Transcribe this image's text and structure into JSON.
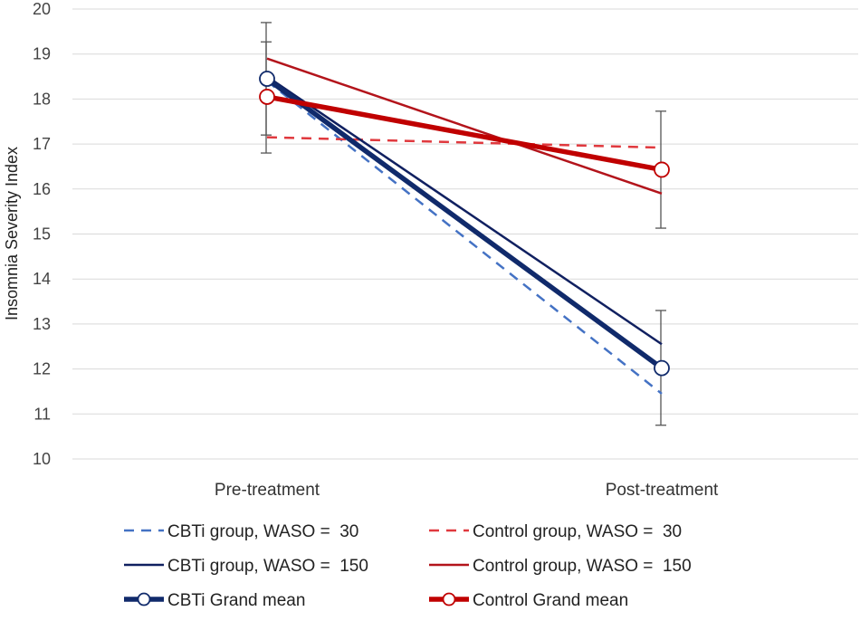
{
  "chart_data": {
    "type": "line",
    "title": "",
    "ylabel": "Insomnia Severity Index",
    "xlabel": "",
    "categories": [
      "Pre-treatment",
      "Post-treatment"
    ],
    "ylim": [
      10,
      20
    ],
    "yticks": [
      "10",
      "11",
      "12",
      "13",
      "14",
      "15",
      "16",
      "17",
      "18",
      "19",
      "20"
    ],
    "grid": true,
    "series": [
      {
        "key": "cbti_w30",
        "name": "CBTi group, WASO =  30",
        "values": [
          18.4,
          11.45
        ],
        "color": "#4472C4",
        "style": "dashed",
        "markers": false,
        "errors": null
      },
      {
        "key": "ctrl_w30",
        "name": "Control group, WASO =  30",
        "values": [
          17.15,
          16.92
        ],
        "color": "#E0393E",
        "style": "dashed",
        "markers": false,
        "errors": null
      },
      {
        "key": "cbti_w150",
        "name": "CBTi group, WASO =  150",
        "values": [
          18.5,
          12.55
        ],
        "color": "#102060",
        "style": "solid",
        "markers": false,
        "errors": null
      },
      {
        "key": "ctrl_w150",
        "name": "Control group, WASO =  150",
        "values": [
          18.9,
          15.9
        ],
        "color": "#B3141B",
        "style": "solid",
        "markers": false,
        "errors": null
      },
      {
        "key": "cbti_mean",
        "name": "CBTi Grand mean",
        "values": [
          18.45,
          12.02
        ],
        "color": "#102a6b",
        "style": "bold",
        "markers": true,
        "errors": [
          [
            17.2,
            19.7
          ],
          [
            10.75,
            13.3
          ]
        ]
      },
      {
        "key": "ctrl_mean",
        "name": "Control Grand mean",
        "values": [
          18.05,
          16.43
        ],
        "color": "#C00000",
        "style": "bold",
        "markers": true,
        "errors": [
          [
            16.8,
            19.27
          ],
          [
            15.13,
            17.73
          ]
        ]
      }
    ],
    "legend_position": "bottom"
  }
}
